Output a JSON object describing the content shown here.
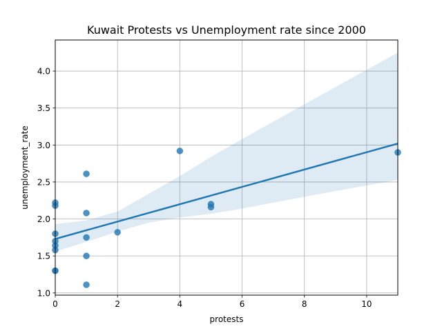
{
  "chart_data": {
    "type": "scatter",
    "title": "Kuwait Protests vs Unemployment rate since 2000",
    "xlabel": "protests",
    "ylabel": "unemployment_rate",
    "xlim": [
      0,
      11
    ],
    "ylim": [
      0.97,
      4.42
    ],
    "xticks": [
      "0",
      "2",
      "4",
      "6",
      "8",
      "10"
    ],
    "yticks": [
      "1.0",
      "1.5",
      "2.0",
      "2.5",
      "3.0",
      "3.5",
      "4.0"
    ],
    "grid": true,
    "colors": {
      "points": "#1f77b4",
      "band": "#1f77b4",
      "grid": "#b0b0b0"
    },
    "points": [
      {
        "x": 0,
        "y": 2.22
      },
      {
        "x": 0,
        "y": 2.18
      },
      {
        "x": 0,
        "y": 1.8
      },
      {
        "x": 0,
        "y": 1.7
      },
      {
        "x": 0,
        "y": 1.64
      },
      {
        "x": 0,
        "y": 1.58
      },
      {
        "x": 0,
        "y": 1.3
      },
      {
        "x": 0,
        "y": 1.3
      },
      {
        "x": 1,
        "y": 2.61
      },
      {
        "x": 1,
        "y": 2.08
      },
      {
        "x": 1,
        "y": 1.75
      },
      {
        "x": 1,
        "y": 1.5
      },
      {
        "x": 1,
        "y": 1.11
      },
      {
        "x": 2,
        "y": 1.82
      },
      {
        "x": 4,
        "y": 2.92
      },
      {
        "x": 5,
        "y": 2.2
      },
      {
        "x": 5,
        "y": 2.16
      },
      {
        "x": 11,
        "y": 2.9
      }
    ],
    "regression": {
      "line": [
        {
          "x": 0,
          "y": 1.73
        },
        {
          "x": 11,
          "y": 3.02
        }
      ],
      "ci_upper": [
        {
          "x": 0,
          "y": 1.93
        },
        {
          "x": 1,
          "y": 1.98
        },
        {
          "x": 2,
          "y": 2.1
        },
        {
          "x": 3,
          "y": 2.34
        },
        {
          "x": 4,
          "y": 2.58
        },
        {
          "x": 5,
          "y": 2.84
        },
        {
          "x": 6,
          "y": 3.08
        },
        {
          "x": 8,
          "y": 3.55
        },
        {
          "x": 11,
          "y": 4.25
        }
      ],
      "ci_lower": [
        {
          "x": 0,
          "y": 1.56
        },
        {
          "x": 1,
          "y": 1.69
        },
        {
          "x": 2,
          "y": 1.83
        },
        {
          "x": 3,
          "y": 1.95
        },
        {
          "x": 4,
          "y": 2.02
        },
        {
          "x": 5,
          "y": 2.07
        },
        {
          "x": 6,
          "y": 2.14
        },
        {
          "x": 8,
          "y": 2.3
        },
        {
          "x": 11,
          "y": 2.53
        }
      ]
    }
  }
}
